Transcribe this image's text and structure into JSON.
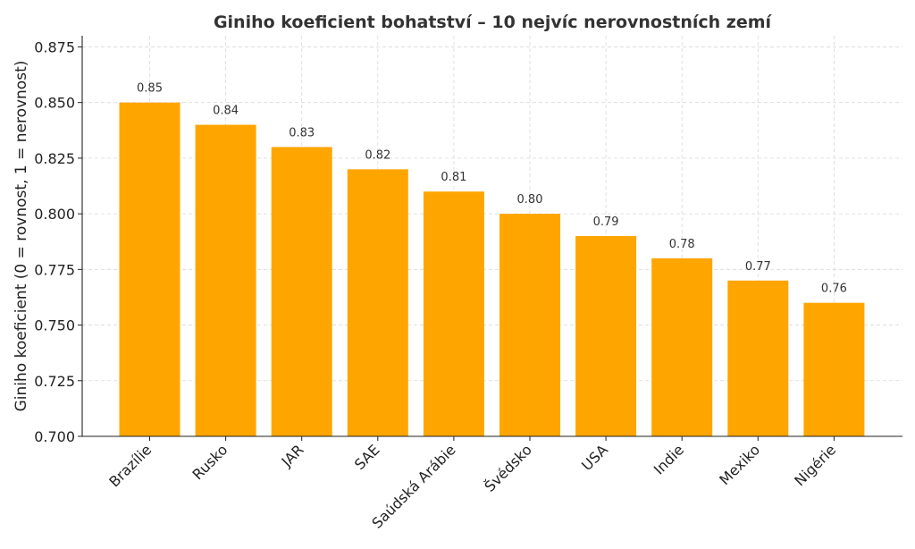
{
  "chart_data": {
    "type": "bar",
    "title": "Giniho koeficient bohatství – 10 nejvíc nerovnostních zemí",
    "xlabel": "",
    "ylabel": "Giniho koeficient (0 = rovnost, 1 = nerovnost)",
    "categories": [
      "Brazílie",
      "Rusko",
      "JAR",
      "SAE",
      "Saúdská Arábie",
      "Švédsko",
      "USA",
      "Indie",
      "Mexiko",
      "Nigérie"
    ],
    "values": [
      0.85,
      0.84,
      0.83,
      0.82,
      0.81,
      0.8,
      0.79,
      0.78,
      0.77,
      0.76
    ],
    "data_labels": [
      "0.85",
      "0.84",
      "0.83",
      "0.82",
      "0.81",
      "0.80",
      "0.79",
      "0.78",
      "0.77",
      "0.76"
    ],
    "yticks": [
      "0.700",
      "0.725",
      "0.750",
      "0.775",
      "0.800",
      "0.825",
      "0.850",
      "0.875"
    ],
    "ylim": [
      0.7,
      0.88
    ],
    "grid": true,
    "legend": "none",
    "bar_color": "#FFA500"
  }
}
